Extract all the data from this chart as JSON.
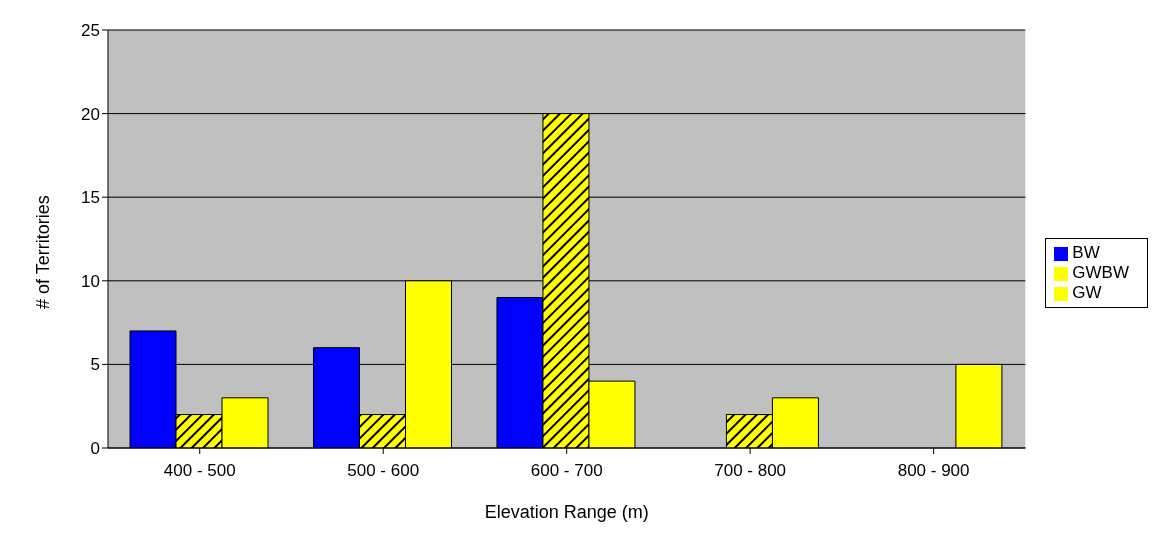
{
  "chart_data": {
    "type": "bar",
    "xlabel": "Elevation Range (m)",
    "ylabel": "# of Territories",
    "categories": [
      "400 - 500",
      "500 - 600",
      "600 - 700",
      "700 - 800",
      "800 - 900"
    ],
    "series": [
      {
        "name": "BW",
        "color": "#0000ff",
        "values": [
          7,
          6,
          9,
          0,
          0
        ]
      },
      {
        "name": "GWBW",
        "color": "#ffff00",
        "values": [
          2,
          2,
          20,
          2,
          0
        ]
      },
      {
        "name": "GW",
        "color": "#ffff00",
        "values": [
          3,
          10,
          4,
          3,
          5
        ]
      }
    ],
    "ylim": [
      0,
      25
    ],
    "yticks": [
      0,
      5,
      10,
      15,
      20,
      25
    ],
    "grid": "y",
    "legend": "right"
  }
}
